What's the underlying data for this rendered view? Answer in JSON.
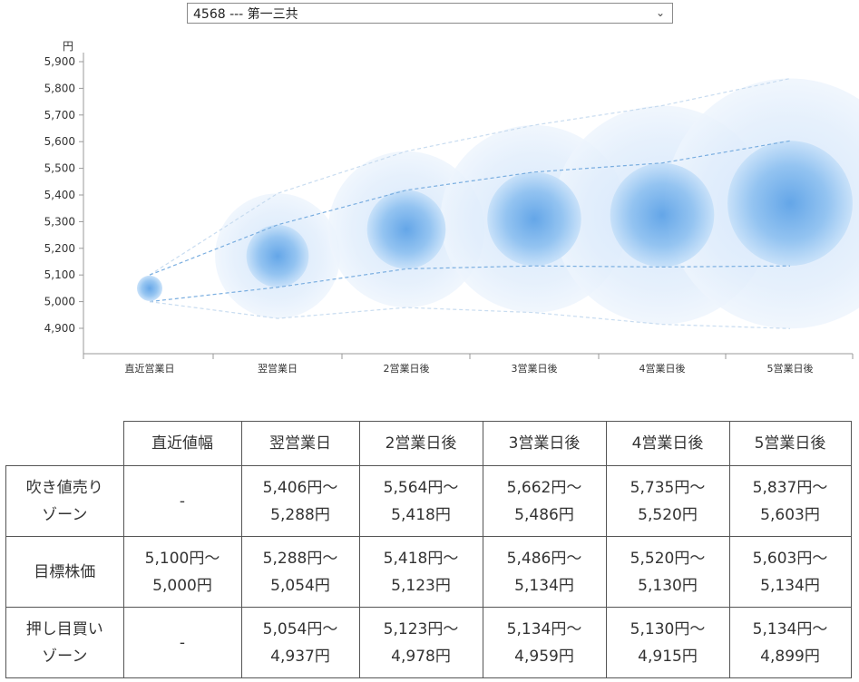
{
  "selector": {
    "value": "4568 --- 第一三共"
  },
  "chart_data": {
    "type": "bubble-range",
    "ylabel": "円",
    "yticks": [
      5900,
      5800,
      5700,
      5600,
      5500,
      5400,
      5300,
      5200,
      5100,
      5000,
      4900
    ],
    "ytick_labels": [
      "5,900",
      "5,800",
      "5,700",
      "5,600",
      "5,500",
      "5,400",
      "5,300",
      "5,200",
      "5,100",
      "5,000",
      "4,900"
    ],
    "ylim": [
      4890,
      5920
    ],
    "categories": [
      "直近営業日",
      "翌営業日",
      "2営業日後",
      "3営業日後",
      "4営業日後",
      "5営業日後"
    ],
    "series": [
      {
        "values": [
          5100,
          5406,
          5564,
          5662,
          5735,
          5837
        ]
      },
      {
        "values": [
          5100,
          5288,
          5418,
          5486,
          5520,
          5603
        ]
      },
      {
        "values": [
          5050,
          5171,
          5271,
          5310,
          5325,
          5369
        ]
      },
      {
        "values": [
          5000,
          5054,
          5123,
          5134,
          5130,
          5134
        ]
      },
      {
        "values": [
          5000,
          4937,
          4978,
          4959,
          4915,
          4899
        ]
      }
    ],
    "colors": {
      "bubble": "#6aaae8",
      "outer": "#dcebfb",
      "line": "#7aaee0",
      "axis": "#999999"
    }
  },
  "table": {
    "headers": [
      "直近値幅",
      "翌営業日",
      "2営業日後",
      "3営業日後",
      "4営業日後",
      "5営業日後"
    ],
    "rows": [
      {
        "label1": "吹き値売り",
        "label2": "ゾーン",
        "cells": [
          [
            "-",
            ""
          ],
          [
            "5,406円～",
            "5,288円"
          ],
          [
            "5,564円～",
            "5,418円"
          ],
          [
            "5,662円～",
            "5,486円"
          ],
          [
            "5,735円～",
            "5,520円"
          ],
          [
            "5,837円～",
            "5,603円"
          ]
        ]
      },
      {
        "label1": "目標株価",
        "label2": "",
        "cells": [
          [
            "5,100円～",
            "5,000円"
          ],
          [
            "5,288円～",
            "5,054円"
          ],
          [
            "5,418円～",
            "5,123円"
          ],
          [
            "5,486円～",
            "5,134円"
          ],
          [
            "5,520円～",
            "5,130円"
          ],
          [
            "5,603円～",
            "5,134円"
          ]
        ]
      },
      {
        "label1": "押し目買い",
        "label2": "ゾーン",
        "cells": [
          [
            "-",
            ""
          ],
          [
            "5,054円～",
            "4,937円"
          ],
          [
            "5,123円～",
            "4,978円"
          ],
          [
            "5,134円～",
            "4,959円"
          ],
          [
            "5,130円～",
            "4,915円"
          ],
          [
            "5,134円～",
            "4,899円"
          ]
        ]
      }
    ]
  }
}
